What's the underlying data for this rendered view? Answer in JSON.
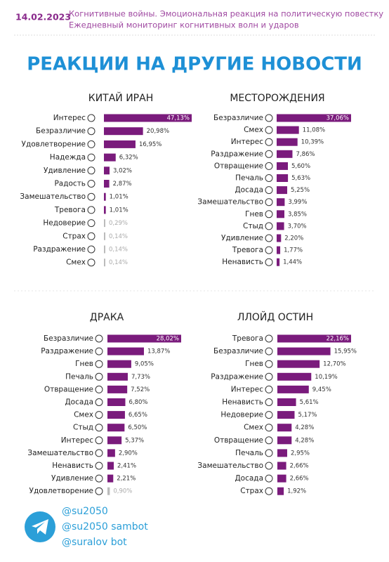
{
  "header": {
    "date": "14.02.2023",
    "subtitle": [
      "Когнитивные войны. Эмоциональная реакция на политическую повестку",
      "Ежедневный мониторинг когнитивных волн и ударов"
    ]
  },
  "title": "РЕАКЦИИ НА ДРУГИЕ НОВОСТИ",
  "chart_data": [
    {
      "type": "bar",
      "title": "КИТАЙ ИРАН",
      "color": "#7a1b7c",
      "categories": [
        "Интерес",
        "Безразличие",
        "Удовлетворение",
        "Надежда",
        "Удивление",
        "Радость",
        "Замешательство",
        "Тревога",
        "Недоверие",
        "Страх",
        "Раздражение",
        "Смех"
      ],
      "values": [
        47.13,
        20.98,
        16.95,
        6.32,
        3.02,
        2.87,
        1.01,
        1.01,
        0.29,
        0.14,
        0.14,
        0.14
      ],
      "value_labels": [
        "47,13%",
        "20,98%",
        "16,95%",
        "6,32%",
        "3,02%",
        "2,87%",
        "1,01%",
        "1,01%",
        "0,29%",
        "0,14%",
        "0,14%",
        "0,14%"
      ]
    },
    {
      "type": "bar",
      "title": "МЕСТОРОЖДЕНИЯ",
      "color": "#7a1b7c",
      "categories": [
        "Безразличие",
        "Смех",
        "Интерес",
        "Раздражение",
        "Отвращение",
        "Печаль",
        "Досада",
        "Замешательство",
        "Гнев",
        "Стыд",
        "Удивление",
        "Тревога",
        "Ненависть"
      ],
      "values": [
        37.06,
        11.08,
        10.39,
        7.86,
        5.6,
        5.63,
        5.25,
        3.99,
        3.85,
        3.7,
        2.2,
        1.77,
        1.44
      ],
      "value_labels": [
        "37,06%",
        "11,08%",
        "10,39%",
        "7,86%",
        "5,60%",
        "5,63%",
        "5,25%",
        "3,99%",
        "3,85%",
        "3,70%",
        "2,20%",
        "1,77%",
        "1,44%"
      ]
    },
    {
      "type": "bar",
      "title": "ДРАКА",
      "color": "#7a1b7c",
      "categories": [
        "Безразличие",
        "Раздражение",
        "Гнев",
        "Печаль",
        "Отвращение",
        "Досада",
        "Смех",
        "Стыд",
        "Интерес",
        "Замешательство",
        "Ненависть",
        "Удивление",
        "Удовлетворение"
      ],
      "values": [
        28.02,
        13.87,
        9.05,
        7.73,
        7.52,
        6.8,
        6.65,
        6.5,
        5.37,
        2.9,
        2.41,
        2.21,
        0.9
      ],
      "value_labels": [
        "28,02%",
        "13,87%",
        "9,05%",
        "7,73%",
        "7,52%",
        "6,80%",
        "6,65%",
        "6,50%",
        "5,37%",
        "2,90%",
        "2,41%",
        "2,21%",
        "0,90%"
      ]
    },
    {
      "type": "bar",
      "title": "ЛЛОЙД ОСТИН",
      "color": "#7a1b7c",
      "categories": [
        "Тревога",
        "Безразличие",
        "Гнев",
        "Раздражение",
        "Интерес",
        "Ненависть",
        "Недоверие",
        "Смех",
        "Отвращение",
        "Печаль",
        "Замешательство",
        "Досада",
        "Страх"
      ],
      "values": [
        22.16,
        15.95,
        12.7,
        10.19,
        9.45,
        5.61,
        5.17,
        4.28,
        4.28,
        2.95,
        2.66,
        2.66,
        1.92
      ],
      "value_labels": [
        "22,16%",
        "15,95%",
        "12,70%",
        "10,19%",
        "9,45%",
        "5,61%",
        "5,17%",
        "4,28%",
        "4,28%",
        "2,95%",
        "2,66%",
        "2,66%",
        "1,92%"
      ]
    }
  ],
  "footer": {
    "handles": [
      "@su2050",
      "@su2050 sambot",
      "@suralov bot"
    ]
  }
}
